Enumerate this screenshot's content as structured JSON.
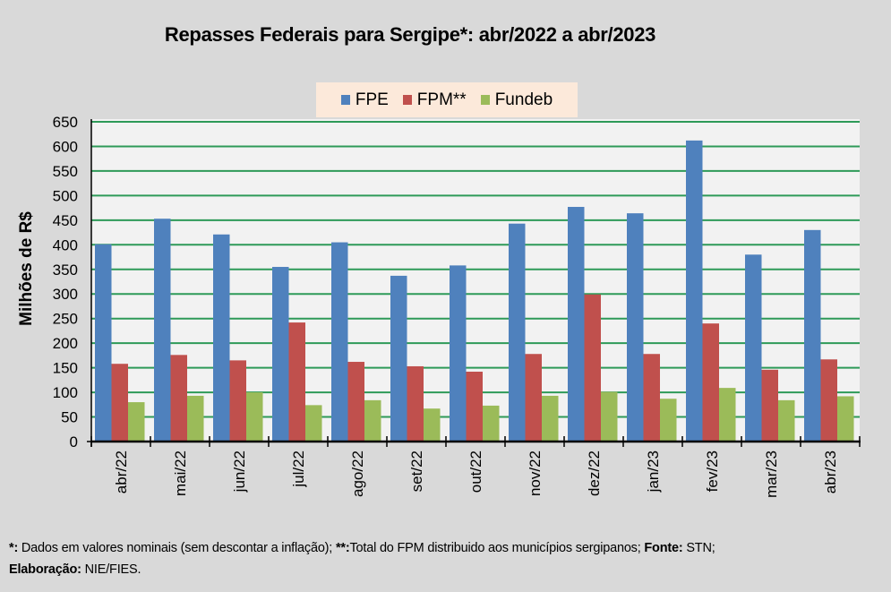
{
  "chart_data": {
    "type": "bar",
    "title": "Repasses Federais para Sergipe*: abr/2022 a abr/2023",
    "xlabel": "",
    "ylabel": "Milhões de R$",
    "ylim": [
      0,
      650
    ],
    "yticks": [
      0,
      50,
      100,
      150,
      200,
      250,
      300,
      350,
      400,
      450,
      500,
      550,
      600,
      650
    ],
    "grid": true,
    "legend_position": "top-center",
    "categories": [
      "abr/22",
      "mai/22",
      "jun/22",
      "jul/22",
      "ago/22",
      "set/22",
      "out/22",
      "nov/22",
      "dez/22",
      "jan/23",
      "fev/23",
      "mar/23",
      "abr/23"
    ],
    "series": [
      {
        "name": "FPE",
        "color": "#4f81bd",
        "values": [
          401,
          453,
          421,
          355,
          405,
          337,
          358,
          443,
          477,
          464,
          612,
          380,
          430
        ]
      },
      {
        "name": "FPM**",
        "color": "#c0504d",
        "values": [
          158,
          176,
          165,
          242,
          162,
          153,
          142,
          178,
          299,
          178,
          240,
          146,
          167
        ]
      },
      {
        "name": "Fundeb",
        "color": "#9bbb59",
        "values": [
          80,
          93,
          100,
          74,
          84,
          67,
          73,
          93,
          101,
          87,
          109,
          84,
          92
        ]
      }
    ]
  },
  "colors": {
    "background": "#d9d9d9",
    "plot_background": "#f2f2f2",
    "gridline": "#2e9a58",
    "legend_background": "#fce9da"
  },
  "footer": {
    "line1": [
      {
        "text": "*:",
        "bold": true
      },
      {
        "text": " Dados em valores nominais (sem descontar a inflação); ",
        "bold": false
      },
      {
        "text": "**:",
        "bold": true
      },
      {
        "text": "Total  do FPM distribuido aos municípios sergipanos; ",
        "bold": false
      },
      {
        "text": "Fonte:",
        "bold": true
      },
      {
        "text": " STN;",
        "bold": false
      }
    ],
    "line2": [
      {
        "text": "Elaboração:",
        "bold": true
      },
      {
        "text": " NIE/FIES.",
        "bold": false
      }
    ]
  }
}
